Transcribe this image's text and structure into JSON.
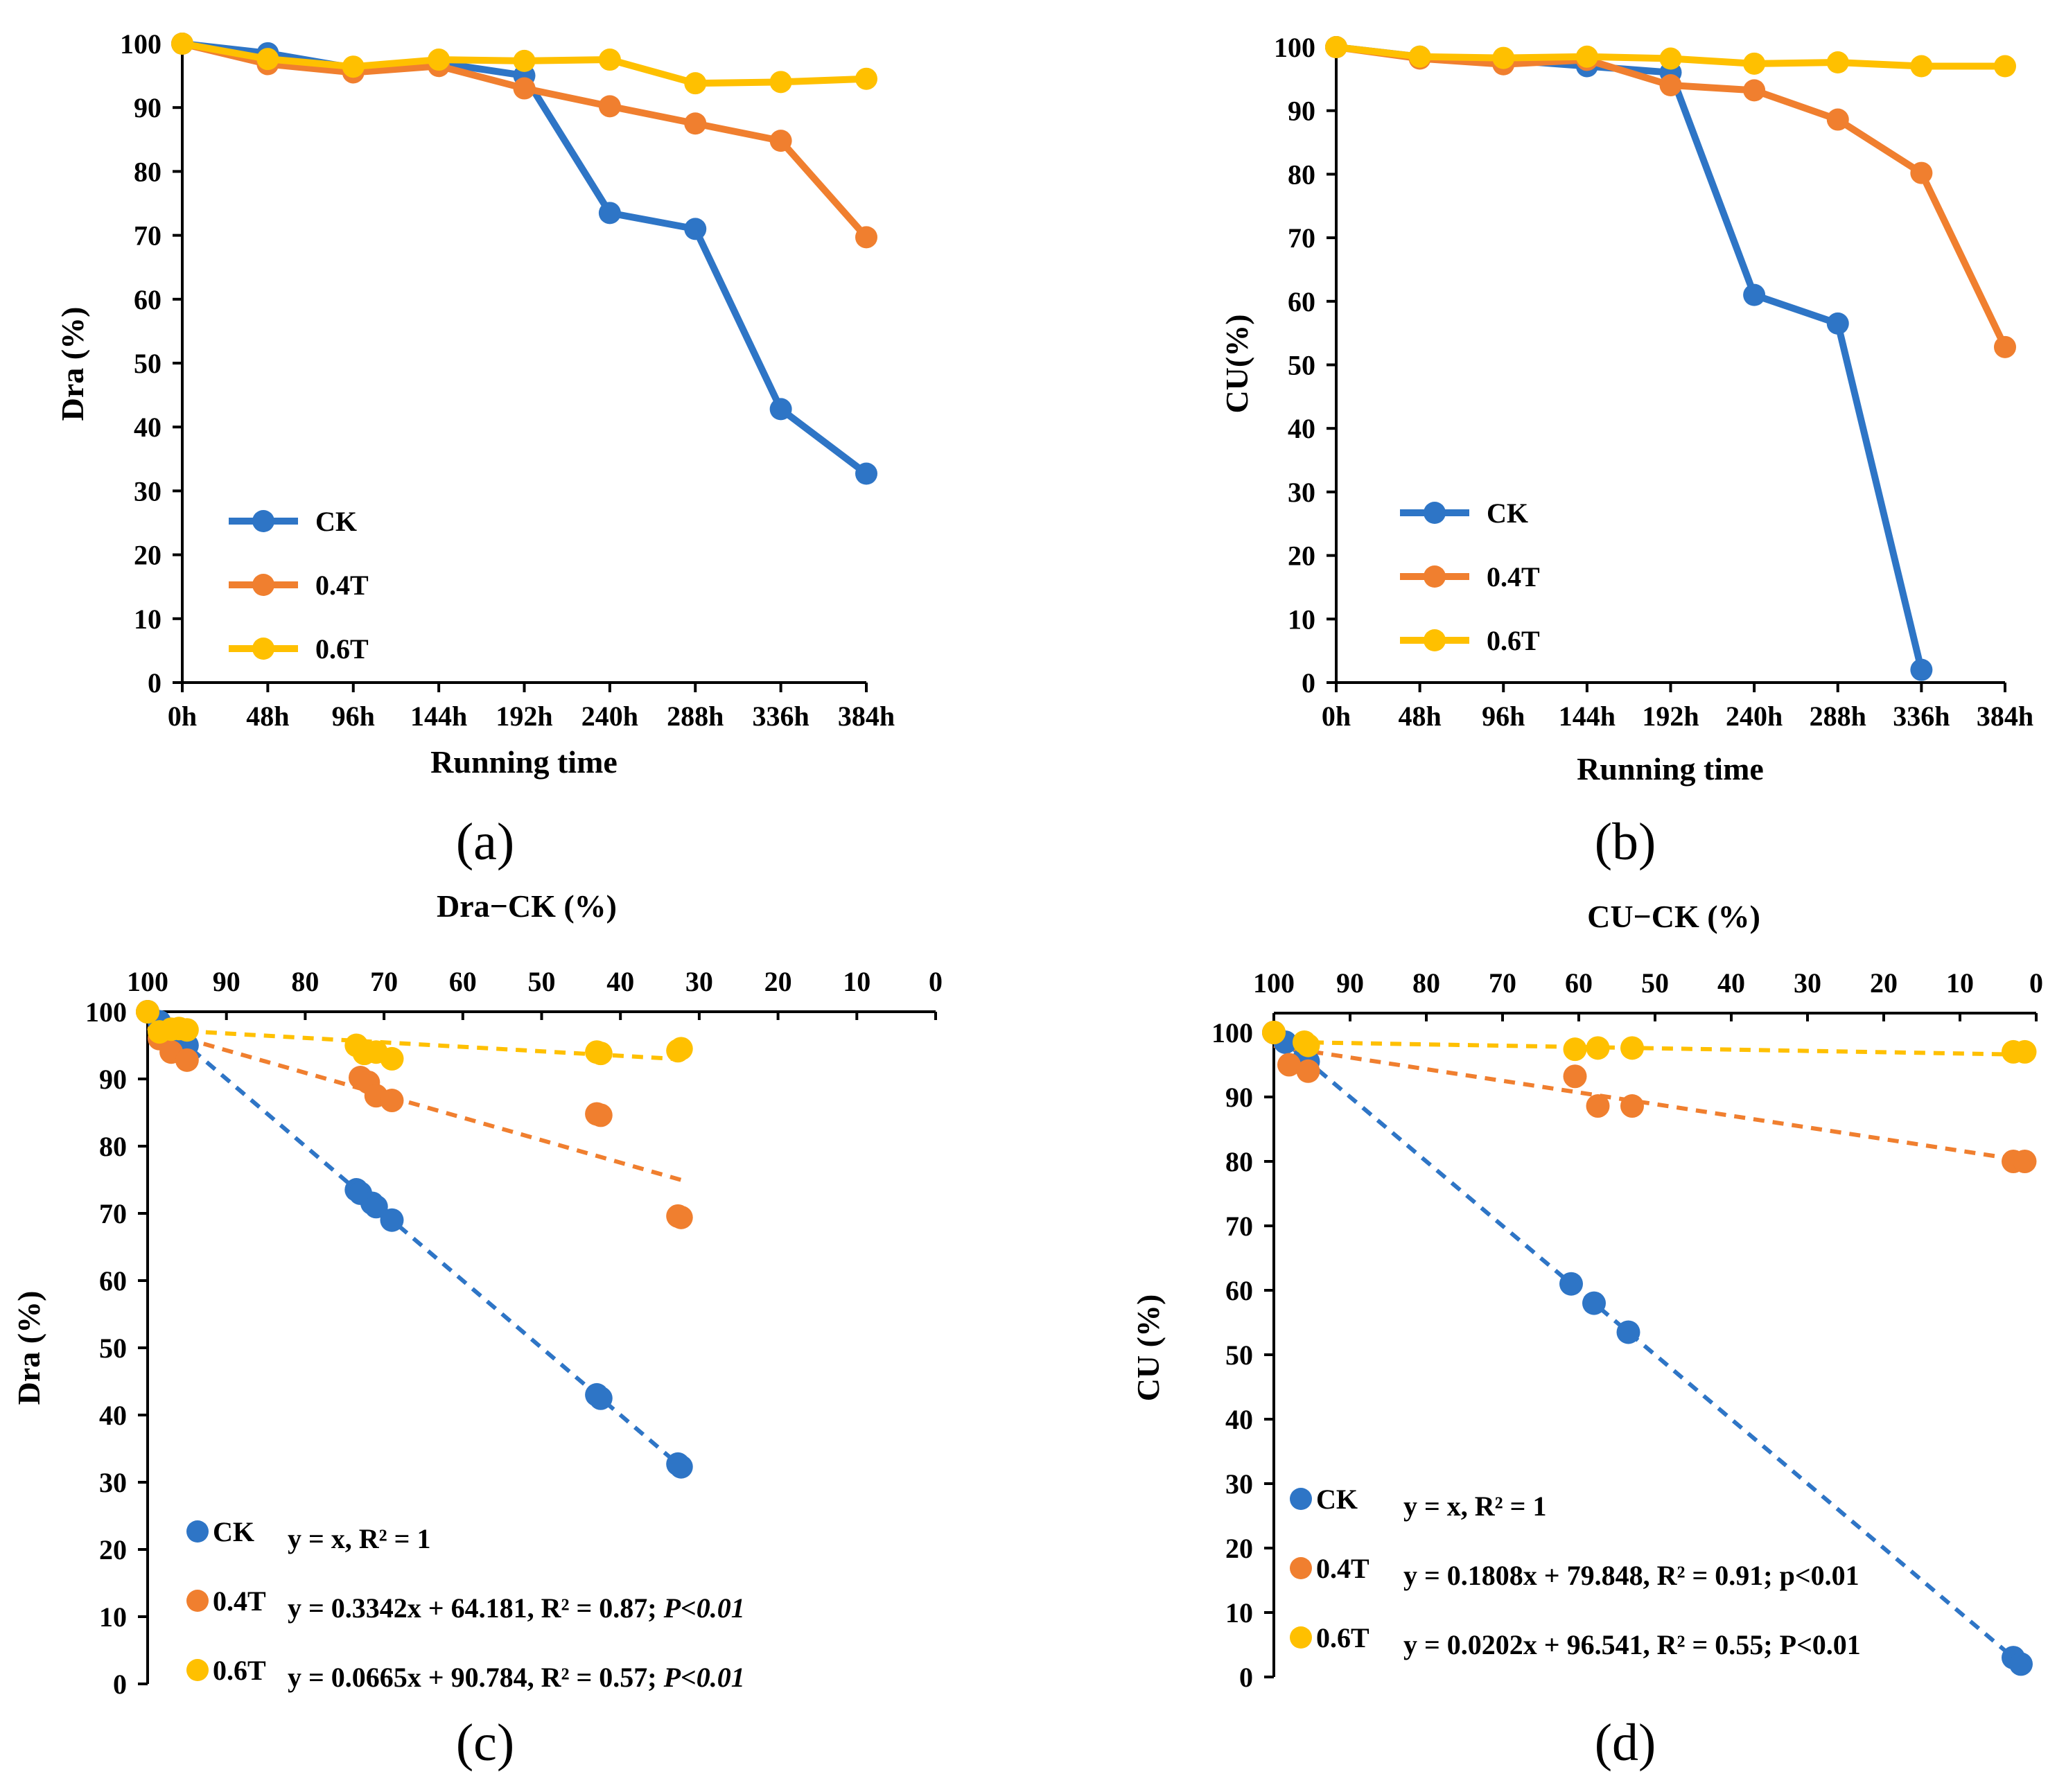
{
  "colors": {
    "CK": "#2E75C6",
    "T04": "#F07F2F",
    "T06": "#FFC000"
  },
  "chart_data": [
    {
      "type": "line",
      "panel_label": "(a)",
      "xlabel": "Running time",
      "ylabel": "Dra (%)",
      "categories": [
        "0h",
        "48h",
        "96h",
        "144h",
        "192h",
        "240h",
        "288h",
        "336h",
        "384h"
      ],
      "ylim": [
        0,
        100
      ],
      "yticks": [
        "0",
        "10",
        "20",
        "30",
        "40",
        "50",
        "60",
        "70",
        "80",
        "90",
        "100"
      ],
      "series": [
        {
          "name": "CK",
          "values": [
            100,
            98.5,
            96.2,
            97.0,
            95.0,
            73.5,
            71.0,
            42.8,
            32.7
          ]
        },
        {
          "name": "0.4T",
          "values": [
            100,
            96.8,
            95.5,
            96.5,
            93.0,
            90.2,
            87.5,
            84.8,
            69.7
          ]
        },
        {
          "name": "0.6T",
          "values": [
            100,
            97.6,
            96.4,
            97.5,
            97.3,
            97.5,
            93.8,
            94.0,
            94.5
          ]
        }
      ]
    },
    {
      "type": "line",
      "panel_label": "(b)",
      "xlabel": "Running time",
      "ylabel": "CU(%)",
      "categories": [
        "0h",
        "48h",
        "96h",
        "144h",
        "192h",
        "240h",
        "288h",
        "336h",
        "384h"
      ],
      "ylim": [
        0,
        100
      ],
      "yticks": [
        "0",
        "10",
        "20",
        "30",
        "40",
        "50",
        "60",
        "70",
        "80",
        "90",
        "100"
      ],
      "series": [
        {
          "name": "CK",
          "values": [
            100,
            98.5,
            98.0,
            97.0,
            96.0,
            61.0,
            56.5,
            2.0,
            null
          ]
        },
        {
          "name": "0.4T",
          "values": [
            100,
            98.2,
            97.3,
            98.0,
            94.0,
            93.2,
            88.6,
            80.2,
            52.8
          ]
        },
        {
          "name": "0.6T",
          "values": [
            100,
            98.5,
            98.3,
            98.5,
            98.2,
            97.4,
            97.6,
            97.0,
            97.0
          ]
        }
      ]
    },
    {
      "type": "scatter",
      "panel_label": "(c)",
      "xlabel": "Dra−CK (%)",
      "ylabel": "Dra (%)",
      "xlim": [
        100,
        0
      ],
      "ylim": [
        0,
        100
      ],
      "xticks": [
        "100",
        "90",
        "80",
        "70",
        "60",
        "50",
        "40",
        "30",
        "20",
        "10",
        "0"
      ],
      "yticks": [
        "0",
        "10",
        "20",
        "30",
        "40",
        "50",
        "60",
        "70",
        "80",
        "90",
        "100"
      ],
      "series": [
        {
          "name": "CK",
          "equation": "y = x,   R² = 1",
          "p_text": "",
          "slope": 1,
          "intercept": 0,
          "fit_range": [
            100,
            32
          ],
          "points": [
            [
              100,
              100
            ],
            [
              98.5,
              98.5
            ],
            [
              96.2,
              96.2
            ],
            [
              97,
              97
            ],
            [
              95,
              95
            ],
            [
              73.5,
              73.5
            ],
            [
              73,
              73
            ],
            [
              71.5,
              71.5
            ],
            [
              71,
              71
            ],
            [
              69,
              69
            ],
            [
              43,
              43
            ],
            [
              42.5,
              42.5
            ],
            [
              32.7,
              32.7
            ],
            [
              32.3,
              32.3
            ]
          ]
        },
        {
          "name": "0.4T",
          "equation": "y = 0.3342x + 64.181, R² = 0.87; ",
          "p_text": "P<0.01",
          "slope": 0.3342,
          "intercept": 64.181,
          "fit_range": [
            100,
            32
          ],
          "points": [
            [
              100,
              100
            ],
            [
              98.5,
              96
            ],
            [
              97,
              94
            ],
            [
              95,
              92.8
            ],
            [
              73,
              90.2
            ],
            [
              72,
              89.5
            ],
            [
              71,
              87.5
            ],
            [
              69,
              86.8
            ],
            [
              43,
              84.8
            ],
            [
              42.5,
              84.6
            ],
            [
              32.7,
              69.6
            ],
            [
              32.3,
              69.4
            ]
          ]
        },
        {
          "name": "0.6T",
          "equation": "y = 0.0665x + 90.784, R² = 0.57; ",
          "p_text": "P<0.01",
          "slope": 0.0665,
          "intercept": 90.784,
          "fit_range": [
            100,
            32
          ],
          "points": [
            [
              100,
              100
            ],
            [
              98.5,
              97
            ],
            [
              97,
              97.4
            ],
            [
              96,
              97.5
            ],
            [
              95,
              97.3
            ],
            [
              73.5,
              95
            ],
            [
              72.5,
              93.8
            ],
            [
              71,
              94
            ],
            [
              69,
              93
            ],
            [
              43,
              94
            ],
            [
              42.5,
              93.8
            ],
            [
              32.7,
              94.2
            ],
            [
              32.3,
              94.5
            ]
          ]
        }
      ]
    },
    {
      "type": "scatter",
      "panel_label": "(d)",
      "xlabel": "CU−CK (%)",
      "ylabel": "CU (%)",
      "xlim": [
        100,
        0
      ],
      "ylim": [
        0,
        100
      ],
      "xticks": [
        "100",
        "90",
        "80",
        "70",
        "60",
        "50",
        "40",
        "30",
        "20",
        "10",
        "0"
      ],
      "yticks": [
        "0",
        "10",
        "20",
        "30",
        "40",
        "50",
        "60",
        "70",
        "80",
        "90",
        "100"
      ],
      "series": [
        {
          "name": "CK",
          "equation": "y = x, R² = 1",
          "p_text": "",
          "slope": 1,
          "intercept": 0,
          "fit_range": [
            100,
            1
          ],
          "points": [
            [
              100,
              100
            ],
            [
              98.5,
              98.5
            ],
            [
              96,
              96
            ],
            [
              95.5,
              95.5
            ],
            [
              61,
              61
            ],
            [
              58,
              58
            ],
            [
              53.5,
              53.5
            ],
            [
              3,
              3
            ],
            [
              2,
              2
            ]
          ]
        },
        {
          "name": "0.4T",
          "equation": "y = 0.1808x + 79.848, R² = 0.91; p<0.01",
          "p_text": "",
          "slope": 0.1808,
          "intercept": 79.848,
          "fit_range": [
            100,
            1
          ],
          "points": [
            [
              100,
              100
            ],
            [
              98,
              95
            ],
            [
              95.5,
              94
            ],
            [
              60.5,
              93.2
            ],
            [
              57.5,
              88.6
            ],
            [
              53,
              88.6
            ],
            [
              3,
              80
            ],
            [
              1.5,
              80
            ]
          ]
        },
        {
          "name": "0.6T",
          "equation": "y = 0.0202x + 96.541, R² = 0.55; P<0.01",
          "p_text": "",
          "slope": 0.0202,
          "intercept": 96.541,
          "fit_range": [
            100,
            1
          ],
          "points": [
            [
              100,
              100
            ],
            [
              96,
              98.5
            ],
            [
              95.5,
              98
            ],
            [
              60.5,
              97.4
            ],
            [
              57.5,
              97.6
            ],
            [
              53,
              97.6
            ],
            [
              3,
              97
            ],
            [
              1.5,
              97
            ]
          ]
        }
      ]
    }
  ]
}
